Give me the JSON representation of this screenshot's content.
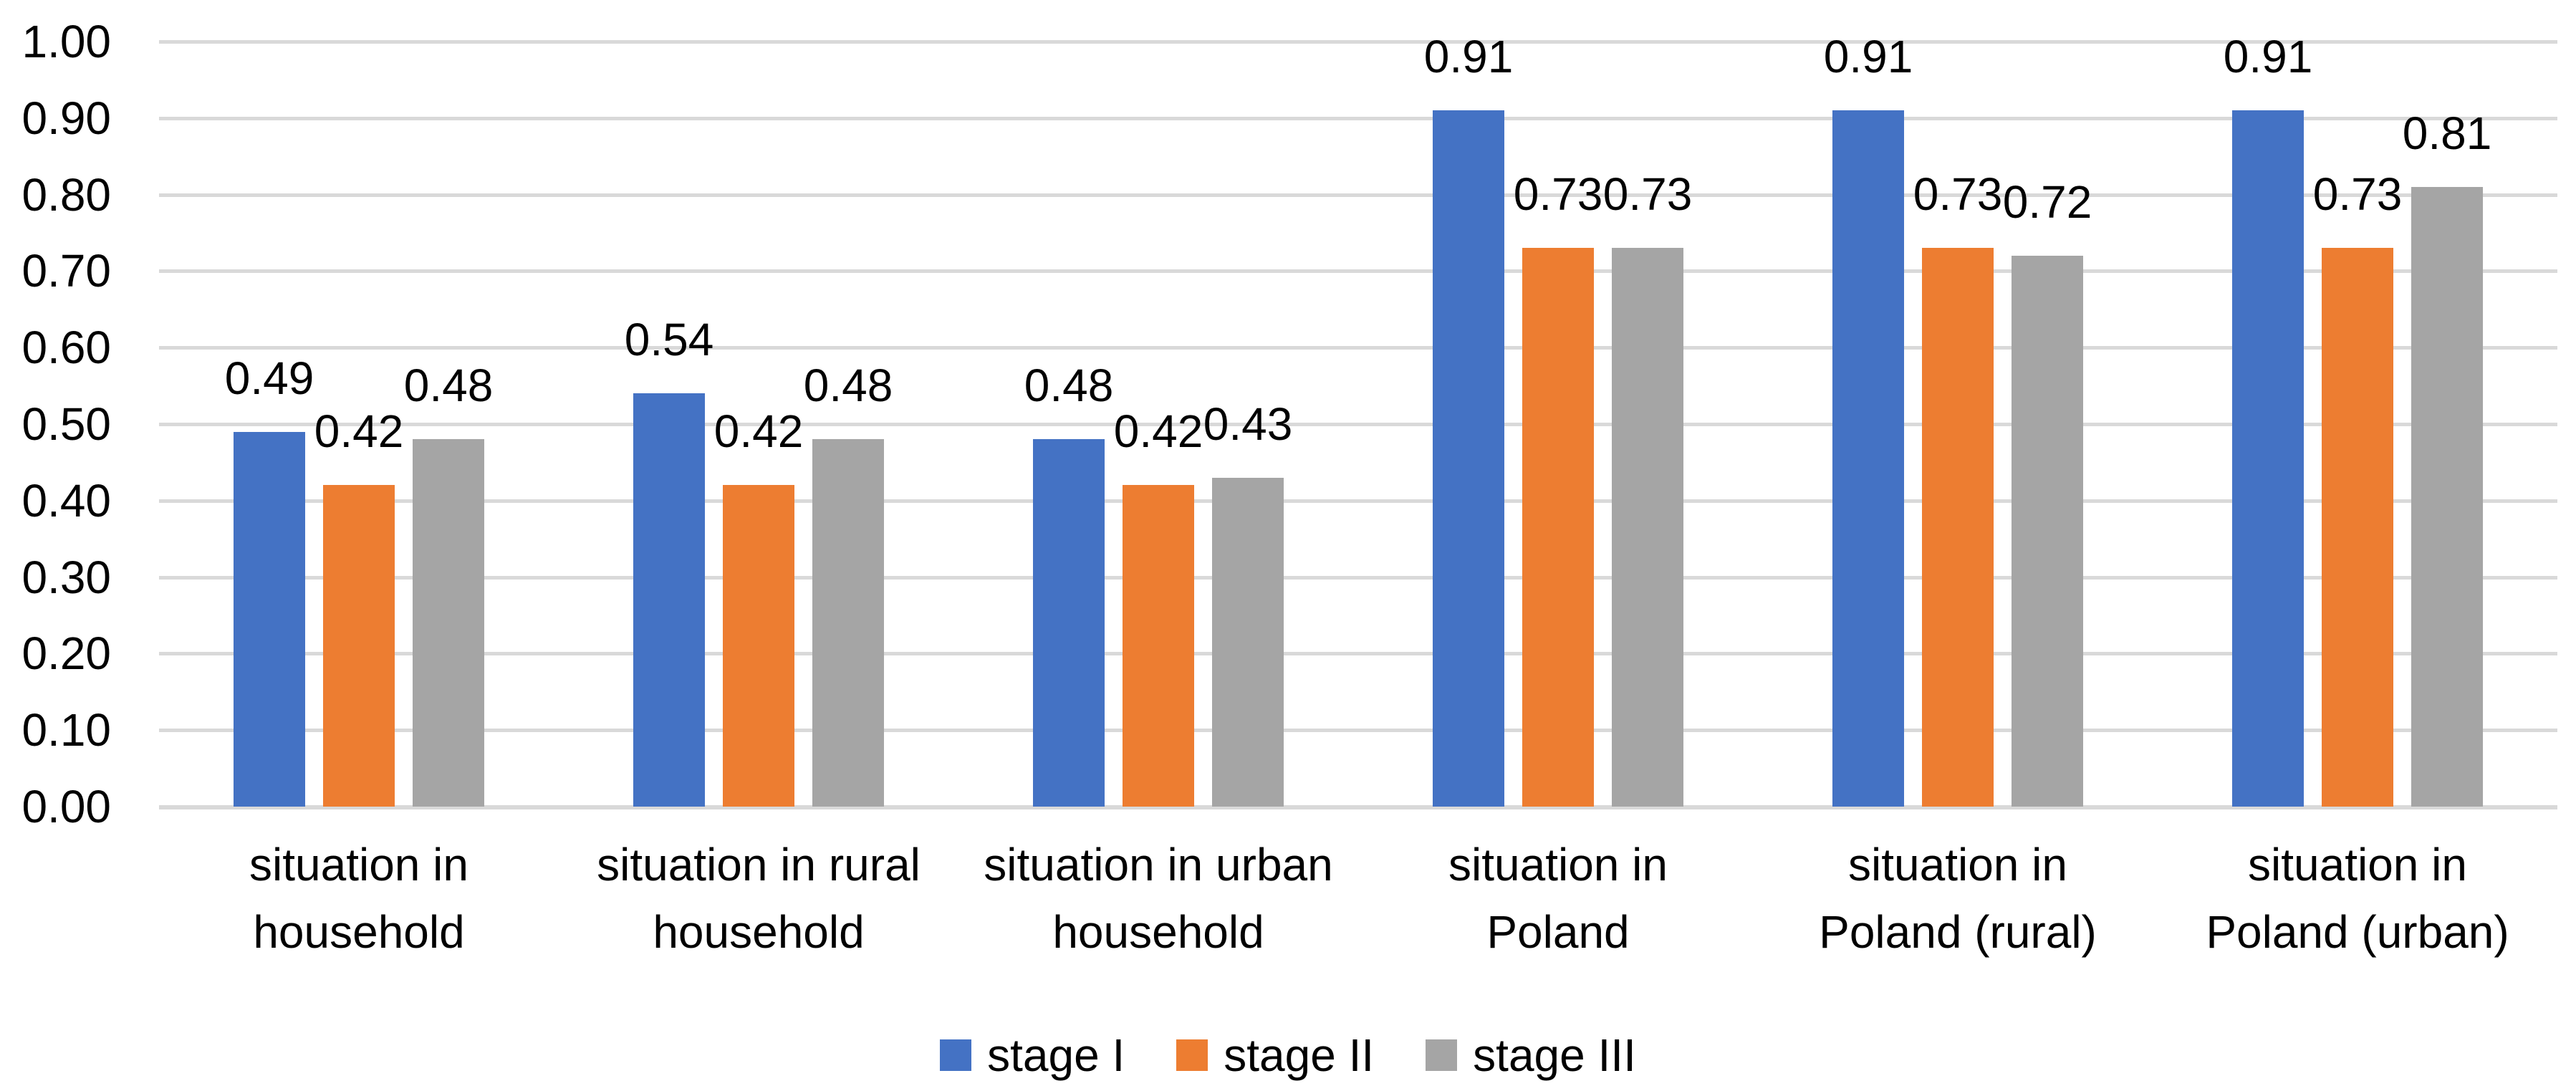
{
  "chart_data": {
    "type": "bar",
    "title": "",
    "xlabel": "",
    "ylabel": "",
    "background": "#FFFFFF",
    "text_color": "#000000",
    "gridline_color": "#D9D9D9",
    "grid": true,
    "legend_position": "bottom-center",
    "y_axis": {
      "min": 0.0,
      "max": 1.0,
      "step": 0.1,
      "tick_labels": [
        "0.00",
        "0.10",
        "0.20",
        "0.30",
        "0.40",
        "0.50",
        "0.60",
        "0.70",
        "0.80",
        "0.90",
        "1.00"
      ]
    },
    "categories": [
      {
        "label": "situation in household",
        "lines": [
          "situation in",
          "household"
        ]
      },
      {
        "label": "situation in rural household",
        "lines": [
          "situation in rural",
          "household"
        ]
      },
      {
        "label": "situation in urban household",
        "lines": [
          "situation in urban",
          "household"
        ]
      },
      {
        "label": "situation in Poland",
        "lines": [
          "situation in",
          "Poland"
        ]
      },
      {
        "label": "situation in Poland (rural)",
        "lines": [
          "situation in",
          "Poland (rural)"
        ]
      },
      {
        "label": "situation in Poland (urban)",
        "lines": [
          "situation in",
          "Poland (urban)"
        ]
      }
    ],
    "series": [
      {
        "name": "stage I",
        "color": "#4472C4",
        "values": [
          0.49,
          0.54,
          0.48,
          0.91,
          0.91,
          0.91
        ],
        "labels": [
          "0.49",
          "0.54",
          "0.48",
          "0.91",
          "0.91",
          "0.91"
        ]
      },
      {
        "name": "stage II",
        "color": "#ED7D31",
        "values": [
          0.42,
          0.42,
          0.42,
          0.73,
          0.73,
          0.73
        ],
        "labels": [
          "0.42",
          "0.42",
          "0.42",
          "0.73",
          "0.73",
          "0.73"
        ]
      },
      {
        "name": "stage III",
        "color": "#A5A5A5",
        "values": [
          0.48,
          0.48,
          0.43,
          0.73,
          0.72,
          0.81
        ],
        "labels": [
          "0.48",
          "0.48",
          "0.43",
          "0.73",
          "0.72",
          "0.81"
        ]
      }
    ]
  }
}
